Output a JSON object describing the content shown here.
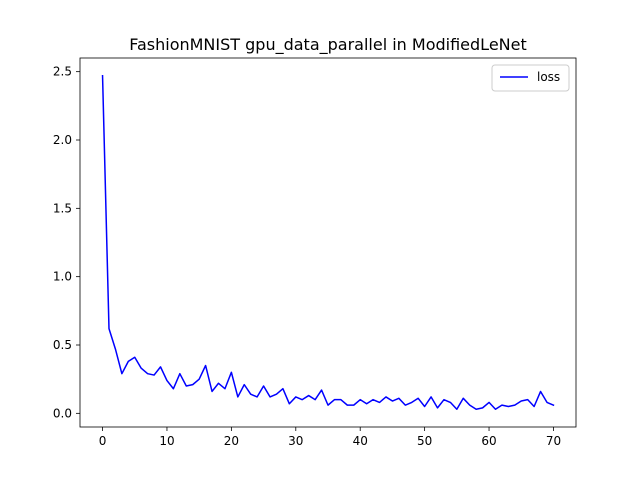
{
  "chart_data": {
    "type": "line",
    "title": "FashionMNIST gpu_data_parallel in ModifiedLeNet",
    "xlabel": "",
    "ylabel": "",
    "xlim": [
      -3.5,
      73.5
    ],
    "ylim": [
      -0.1,
      2.6
    ],
    "xticks": [
      0,
      10,
      20,
      30,
      40,
      50,
      60,
      70
    ],
    "yticks": [
      0.0,
      0.5,
      1.0,
      1.5,
      2.0,
      2.5
    ],
    "ytick_labels": [
      "0.0",
      "0.5",
      "1.0",
      "1.5",
      "2.0",
      "2.5"
    ],
    "grid": false,
    "legend_position": "top-right",
    "series": [
      {
        "name": "loss",
        "color": "#0000ff",
        "x": [
          0,
          1,
          2,
          3,
          4,
          5,
          6,
          7,
          8,
          9,
          10,
          11,
          12,
          13,
          14,
          15,
          16,
          17,
          18,
          19,
          20,
          21,
          22,
          23,
          24,
          25,
          26,
          27,
          28,
          29,
          30,
          31,
          32,
          33,
          34,
          35,
          36,
          37,
          38,
          39,
          40,
          41,
          42,
          43,
          44,
          45,
          46,
          47,
          48,
          49,
          50,
          51,
          52,
          53,
          54,
          55,
          56,
          57,
          58,
          59,
          60,
          61,
          62,
          63,
          64,
          65,
          66,
          67,
          68,
          69,
          70
        ],
        "values": [
          2.47,
          0.62,
          0.47,
          0.29,
          0.38,
          0.41,
          0.33,
          0.29,
          0.28,
          0.34,
          0.24,
          0.18,
          0.29,
          0.2,
          0.21,
          0.25,
          0.35,
          0.16,
          0.22,
          0.18,
          0.3,
          0.12,
          0.21,
          0.14,
          0.12,
          0.2,
          0.12,
          0.14,
          0.18,
          0.07,
          0.12,
          0.1,
          0.13,
          0.1,
          0.17,
          0.06,
          0.1,
          0.1,
          0.06,
          0.06,
          0.1,
          0.07,
          0.1,
          0.08,
          0.12,
          0.09,
          0.11,
          0.06,
          0.08,
          0.11,
          0.05,
          0.12,
          0.04,
          0.1,
          0.08,
          0.03,
          0.11,
          0.06,
          0.03,
          0.04,
          0.08,
          0.03,
          0.06,
          0.05,
          0.06,
          0.09,
          0.1,
          0.05,
          0.16,
          0.08,
          0.06
        ]
      }
    ]
  }
}
